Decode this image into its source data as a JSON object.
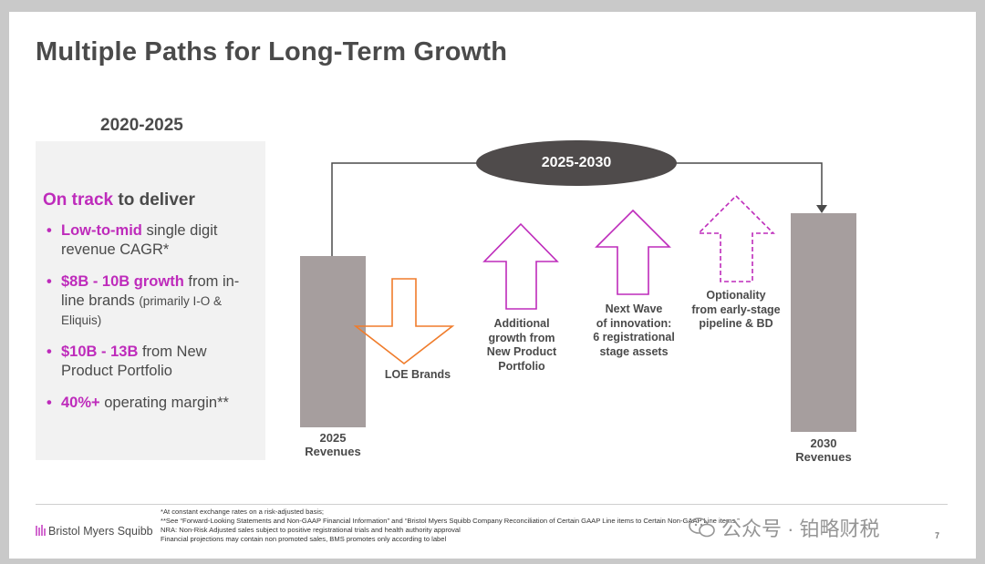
{
  "title": "Multiple Paths for Long-Term Growth",
  "left_period": "2020-2025",
  "panel": {
    "heading_highlight": "On track",
    "heading_rest": " to deliver",
    "bullets": [
      {
        "em": "Low-to-mid",
        "text": " single digit revenue CAGR*",
        "small": ""
      },
      {
        "em": "$8B - 10B growth",
        "text": " from in-line brands ",
        "small": "(primarily I-O & Eliquis)"
      },
      {
        "em": "$10B - 13B",
        "text": " from New Product Portfolio",
        "small": ""
      },
      {
        "em": "40%+",
        "text": " operating margin**",
        "small": ""
      }
    ]
  },
  "diagram": {
    "bridge_label": "2025-2030",
    "start_bar": {
      "line1": "2025",
      "line2": "Revenues"
    },
    "end_bar": {
      "line1": "2030",
      "line2": "Revenues"
    },
    "drivers": [
      {
        "id": "loe",
        "direction": "down",
        "style": "solid",
        "color": "#f07c2b",
        "lines": [
          "LOE Brands"
        ]
      },
      {
        "id": "new-product",
        "direction": "up",
        "style": "solid",
        "color": "#be2bbb",
        "lines": [
          "Additional",
          "growth from",
          "New Product",
          "Portfolio"
        ]
      },
      {
        "id": "next-wave",
        "direction": "up",
        "style": "solid",
        "color": "#be2bbb",
        "lines": [
          "Next Wave",
          "of innovation:",
          "6 registrational",
          "stage assets"
        ]
      },
      {
        "id": "optionality",
        "direction": "up",
        "style": "dashed",
        "color": "#be2bbb",
        "lines": [
          "Optionality",
          "from early-stage",
          "pipeline & BD"
        ]
      }
    ]
  },
  "footer": {
    "logo_text": "Bristol Myers Squibb",
    "footnotes": [
      "*At constant exchange rates on a risk-adjusted basis;",
      "**See “Forward-Looking Statements and Non-GAAP Financial Information” and “Bristol Myers Squibb Company Reconciliation of Certain GAAP Line items to Certain Non-GAAP Line items.”",
      "NRA: Non-Risk Adjusted sales subject to positive registrational trials and health authority approval",
      "Financial projections may contain non promoted sales, BMS promotes only according to label"
    ],
    "page_number": "7"
  },
  "watermark": {
    "icon": "wechat-icon",
    "text": "公众号 · 铂略财税"
  }
}
